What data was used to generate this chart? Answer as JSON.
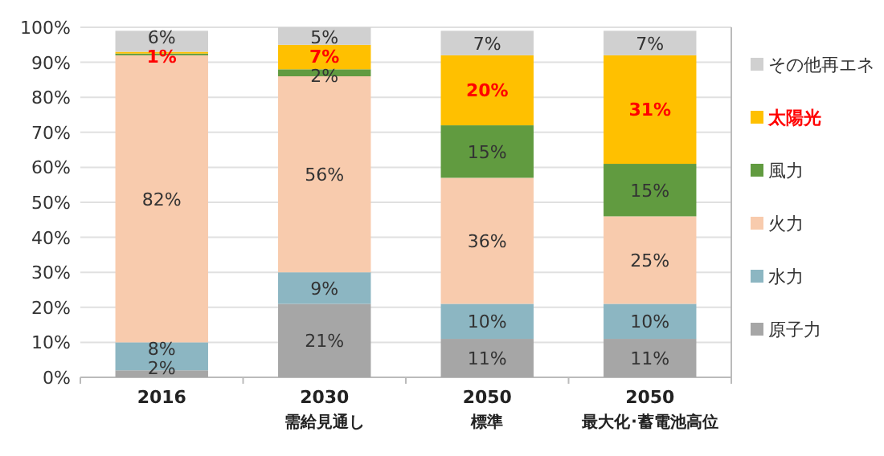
{
  "chart_data": {
    "type": "bar",
    "stacked": true,
    "categories": [
      "2016",
      "2030\n需給見通し",
      "2050\n標準",
      "2050\n最大化･蓄電池高位"
    ],
    "series": [
      {
        "name": "原子力",
        "color": "#a6a6a6",
        "values": [
          2,
          21,
          11,
          11
        ],
        "value_labels": [
          "2%",
          "21%",
          "11%",
          "11%"
        ]
      },
      {
        "name": "水力",
        "color": "#8cb6c2",
        "values": [
          8,
          9,
          10,
          10
        ],
        "value_labels": [
          "8%",
          "9%",
          "10%",
          "10%"
        ]
      },
      {
        "name": "火力",
        "color": "#f8cbad",
        "values": [
          82,
          56,
          36,
          25
        ],
        "value_labels": [
          "82%",
          "56%",
          "36%",
          "25%"
        ]
      },
      {
        "name": "風力",
        "color": "#619b40",
        "values": [
          0.5,
          2,
          15,
          15
        ],
        "value_labels": [
          null,
          "2%",
          "15%",
          "15%"
        ]
      },
      {
        "name": "太陽光",
        "color": "#ffc000",
        "values": [
          0.5,
          7,
          20,
          31
        ],
        "value_labels": [
          "1%",
          "7%",
          "20%",
          "31%"
        ]
      },
      {
        "name": "その他再エネ",
        "color": "#d0d0d0",
        "values": [
          6,
          5,
          7,
          7
        ],
        "value_labels": [
          "6%",
          "5%",
          "7%",
          "7%"
        ]
      }
    ],
    "ylim": [
      0,
      100
    ],
    "yticks": [
      {
        "value": 0,
        "label": "0%"
      },
      {
        "value": 10,
        "label": "10%"
      },
      {
        "value": 20,
        "label": "20%"
      },
      {
        "value": 30,
        "label": "30%"
      },
      {
        "value": 40,
        "label": "40%"
      },
      {
        "value": 50,
        "label": "50%"
      },
      {
        "value": 60,
        "label": "60%"
      },
      {
        "value": 70,
        "label": "70%"
      },
      {
        "value": 80,
        "label": "80%"
      },
      {
        "value": 90,
        "label": "90%"
      },
      {
        "value": 100,
        "label": "100%"
      }
    ],
    "grid": "y",
    "legend": "right"
  }
}
